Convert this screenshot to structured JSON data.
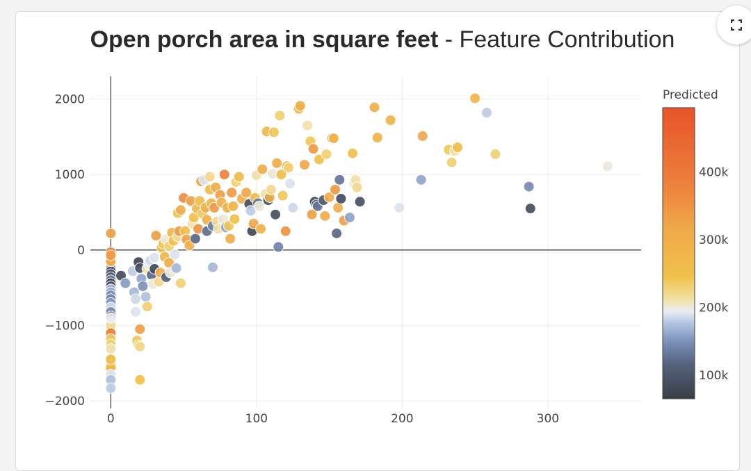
{
  "header": {
    "title_bold": "Open porch area in square feet",
    "title_rest": " - Feature Contribution"
  },
  "toolbar": {
    "expand_icon": "fullscreen-expand-icon"
  },
  "chart_data": {
    "type": "scatter",
    "title": "Open porch area in square feet - Feature Contribution",
    "xlabel": "",
    "ylabel": "",
    "xlim": [
      -14,
      364
    ],
    "ylim": [
      -2100,
      2300
    ],
    "x_ticks": [
      0,
      100,
      200,
      300
    ],
    "y_ticks": [
      2000,
      1000,
      0,
      -1000,
      -2000
    ],
    "x_tick_labels": [
      "0",
      "100",
      "200",
      "300"
    ],
    "y_tick_labels": [
      "2000",
      "1000",
      "0",
      "−1000",
      "−2000"
    ],
    "grid": true,
    "zero_lines": true,
    "colorbar": {
      "title": "Predicted",
      "range": [
        65000,
        495000
      ],
      "tick_values": [
        100000,
        200000,
        300000,
        400000
      ],
      "tick_labels": [
        "100k",
        "200k",
        "300k",
        "400k"
      ],
      "colorscale": [
        [
          0.0,
          "#3a3d46"
        ],
        [
          0.12,
          "#56637e"
        ],
        [
          0.2,
          "#7e94bd"
        ],
        [
          0.26,
          "#b3c4e0"
        ],
        [
          0.3,
          "#e9edf3"
        ],
        [
          0.34,
          "#f3e0a6"
        ],
        [
          0.42,
          "#f0c24a"
        ],
        [
          0.58,
          "#f0a94a"
        ],
        [
          0.75,
          "#ec7e3c"
        ],
        [
          1.0,
          "#e8532a"
        ]
      ],
      "placement": "right"
    },
    "points": [
      [
        0,
        220,
        330000
      ],
      [
        0,
        -30,
        380000
      ],
      [
        0,
        -120,
        360000
      ],
      [
        0,
        -180,
        330000
      ],
      [
        0,
        -240,
        150000
      ],
      [
        0,
        -280,
        95000
      ],
      [
        0,
        -320,
        85000
      ],
      [
        0,
        -360,
        110000
      ],
      [
        0,
        -400,
        130000
      ],
      [
        0,
        -440,
        75000
      ],
      [
        0,
        -480,
        90000
      ],
      [
        0,
        -520,
        170000
      ],
      [
        0,
        -560,
        160000
      ],
      [
        0,
        -600,
        150000
      ],
      [
        0,
        -650,
        140000
      ],
      [
        0,
        -700,
        155000
      ],
      [
        0,
        -760,
        185000
      ],
      [
        0,
        -820,
        145000
      ],
      [
        0,
        -880,
        80000
      ],
      [
        0,
        -950,
        190000
      ],
      [
        0,
        -1000,
        220000
      ],
      [
        0,
        -1100,
        390000
      ],
      [
        0,
        -1180,
        240000
      ],
      [
        0,
        -1250,
        230000
      ],
      [
        0,
        -1310,
        210000
      ],
      [
        0,
        -1440,
        320000
      ],
      [
        0,
        -1520,
        270000
      ],
      [
        0,
        -1560,
        280000
      ],
      [
        0,
        -1650,
        190000
      ],
      [
        0,
        -1720,
        175000
      ],
      [
        0,
        -1830,
        180000
      ],
      [
        0,
        -1450,
        250000
      ],
      [
        0,
        -900,
        195000
      ],
      [
        0,
        -150,
        300000
      ],
      [
        0,
        -70,
        340000
      ],
      [
        7,
        -340,
        85000
      ],
      [
        10,
        -440,
        155000
      ],
      [
        15,
        -280,
        180000
      ],
      [
        16,
        -560,
        170000
      ],
      [
        17,
        -820,
        190000
      ],
      [
        17,
        -650,
        185000
      ],
      [
        18,
        -1200,
        240000
      ],
      [
        19,
        -1260,
        230000
      ],
      [
        20,
        -1050,
        330000
      ],
      [
        20,
        -1280,
        220000
      ],
      [
        20,
        -1720,
        250000
      ],
      [
        19,
        -160,
        75000
      ],
      [
        20,
        -240,
        90000
      ],
      [
        21,
        -380,
        160000
      ],
      [
        22,
        -480,
        150000
      ],
      [
        24,
        -620,
        175000
      ],
      [
        25,
        -750,
        230000
      ],
      [
        25,
        -250,
        210000
      ],
      [
        26,
        -190,
        195000
      ],
      [
        27,
        -140,
        185000
      ],
      [
        28,
        -330,
        120000
      ],
      [
        29,
        -450,
        200000
      ],
      [
        30,
        -250,
        80000
      ],
      [
        30,
        -100,
        190000
      ],
      [
        31,
        190,
        330000
      ],
      [
        33,
        -420,
        220000
      ],
      [
        34,
        -300,
        300000
      ],
      [
        35,
        30,
        260000
      ],
      [
        36,
        80,
        240000
      ],
      [
        37,
        -90,
        280000
      ],
      [
        38,
        -360,
        110000
      ],
      [
        38,
        140,
        200000
      ],
      [
        40,
        50,
        230000
      ],
      [
        40,
        -170,
        310000
      ],
      [
        41,
        -300,
        200000
      ],
      [
        42,
        230,
        280000
      ],
      [
        43,
        120,
        250000
      ],
      [
        44,
        -60,
        190000
      ],
      [
        45,
        -240,
        170000
      ],
      [
        46,
        180,
        220000
      ],
      [
        46,
        490,
        250000
      ],
      [
        47,
        250,
        340000
      ],
      [
        48,
        530,
        300000
      ],
      [
        48,
        -440,
        230000
      ],
      [
        50,
        690,
        360000
      ],
      [
        51,
        250,
        260000
      ],
      [
        52,
        140,
        330000
      ],
      [
        54,
        60,
        300000
      ],
      [
        55,
        650,
        330000
      ],
      [
        56,
        350,
        210000
      ],
      [
        57,
        430,
        250000
      ],
      [
        58,
        150,
        120000
      ],
      [
        59,
        550,
        270000
      ],
      [
        60,
        280,
        350000
      ],
      [
        61,
        650,
        260000
      ],
      [
        62,
        910,
        330000
      ],
      [
        63,
        480,
        240000
      ],
      [
        64,
        930,
        190000
      ],
      [
        65,
        560,
        300000
      ],
      [
        66,
        400,
        290000
      ],
      [
        66,
        250,
        125000
      ],
      [
        68,
        800,
        270000
      ],
      [
        68,
        970,
        220000
      ],
      [
        69,
        620,
        280000
      ],
      [
        70,
        320,
        135000
      ],
      [
        70,
        -230,
        170000
      ],
      [
        71,
        560,
        340000
      ],
      [
        72,
        830,
        300000
      ],
      [
        73,
        380,
        220000
      ],
      [
        74,
        280,
        210000
      ],
      [
        75,
        730,
        330000
      ],
      [
        76,
        630,
        290000
      ],
      [
        77,
        410,
        200000
      ],
      [
        78,
        1000,
        380000
      ],
      [
        79,
        300,
        160000
      ],
      [
        80,
        560,
        300000
      ],
      [
        81,
        320,
        240000
      ],
      [
        82,
        150,
        310000
      ],
      [
        83,
        760,
        340000
      ],
      [
        84,
        580,
        280000
      ],
      [
        85,
        410,
        250000
      ],
      [
        86,
        900,
        230000
      ],
      [
        88,
        970,
        260000
      ],
      [
        90,
        680,
        300000
      ],
      [
        93,
        760,
        320000
      ],
      [
        95,
        610,
        85000
      ],
      [
        96,
        520,
        180000
      ],
      [
        97,
        250,
        80000
      ],
      [
        98,
        350,
        320000
      ],
      [
        99,
        690,
        270000
      ],
      [
        100,
        990,
        210000
      ],
      [
        101,
        620,
        130000
      ],
      [
        102,
        580,
        200000
      ],
      [
        103,
        280,
        290000
      ],
      [
        104,
        1070,
        300000
      ],
      [
        106,
        740,
        210000
      ],
      [
        107,
        1570,
        270000
      ],
      [
        108,
        660,
        90000
      ],
      [
        109,
        700,
        310000
      ],
      [
        110,
        800,
        220000
      ],
      [
        111,
        1010,
        200000
      ],
      [
        112,
        1560,
        240000
      ],
      [
        113,
        470,
        90000
      ],
      [
        114,
        1150,
        310000
      ],
      [
        115,
        40,
        140000
      ],
      [
        116,
        1780,
        230000
      ],
      [
        117,
        1000,
        260000
      ],
      [
        118,
        720,
        240000
      ],
      [
        120,
        250,
        350000
      ],
      [
        121,
        1110,
        300000
      ],
      [
        122,
        1090,
        230000
      ],
      [
        123,
        880,
        190000
      ],
      [
        125,
        560,
        185000
      ],
      [
        129,
        1870,
        270000
      ],
      [
        130,
        1910,
        300000
      ],
      [
        133,
        1130,
        320000
      ],
      [
        135,
        1650,
        210000
      ],
      [
        137,
        1440,
        240000
      ],
      [
        138,
        470,
        330000
      ],
      [
        139,
        1340,
        340000
      ],
      [
        140,
        640,
        80000
      ],
      [
        141,
        600,
        110000
      ],
      [
        142,
        580,
        130000
      ],
      [
        143,
        1200,
        250000
      ],
      [
        146,
        660,
        100000
      ],
      [
        147,
        450,
        310000
      ],
      [
        148,
        1270,
        230000
      ],
      [
        150,
        700,
        300000
      ],
      [
        152,
        1480,
        350000
      ],
      [
        153,
        1480,
        280000
      ],
      [
        154,
        800,
        340000
      ],
      [
        155,
        220,
        120000
      ],
      [
        156,
        560,
        300000
      ],
      [
        157,
        930,
        130000
      ],
      [
        158,
        680,
        85000
      ],
      [
        160,
        390,
        330000
      ],
      [
        164,
        430,
        160000
      ],
      [
        166,
        1280,
        250000
      ],
      [
        167,
        880,
        200000
      ],
      [
        168,
        930,
        210000
      ],
      [
        169,
        830,
        220000
      ],
      [
        171,
        640,
        90000
      ],
      [
        181,
        1890,
        300000
      ],
      [
        183,
        1490,
        290000
      ],
      [
        192,
        1720,
        290000
      ],
      [
        198,
        560,
        190000
      ],
      [
        213,
        930,
        160000
      ],
      [
        214,
        1510,
        320000
      ],
      [
        232,
        1330,
        240000
      ],
      [
        234,
        1160,
        230000
      ],
      [
        236,
        1310,
        210000
      ],
      [
        238,
        1360,
        260000
      ],
      [
        250,
        2010,
        280000
      ],
      [
        258,
        1820,
        180000
      ],
      [
        264,
        1270,
        230000
      ],
      [
        287,
        840,
        145000
      ],
      [
        288,
        550,
        90000
      ],
      [
        341,
        1110,
        200000
      ]
    ]
  }
}
